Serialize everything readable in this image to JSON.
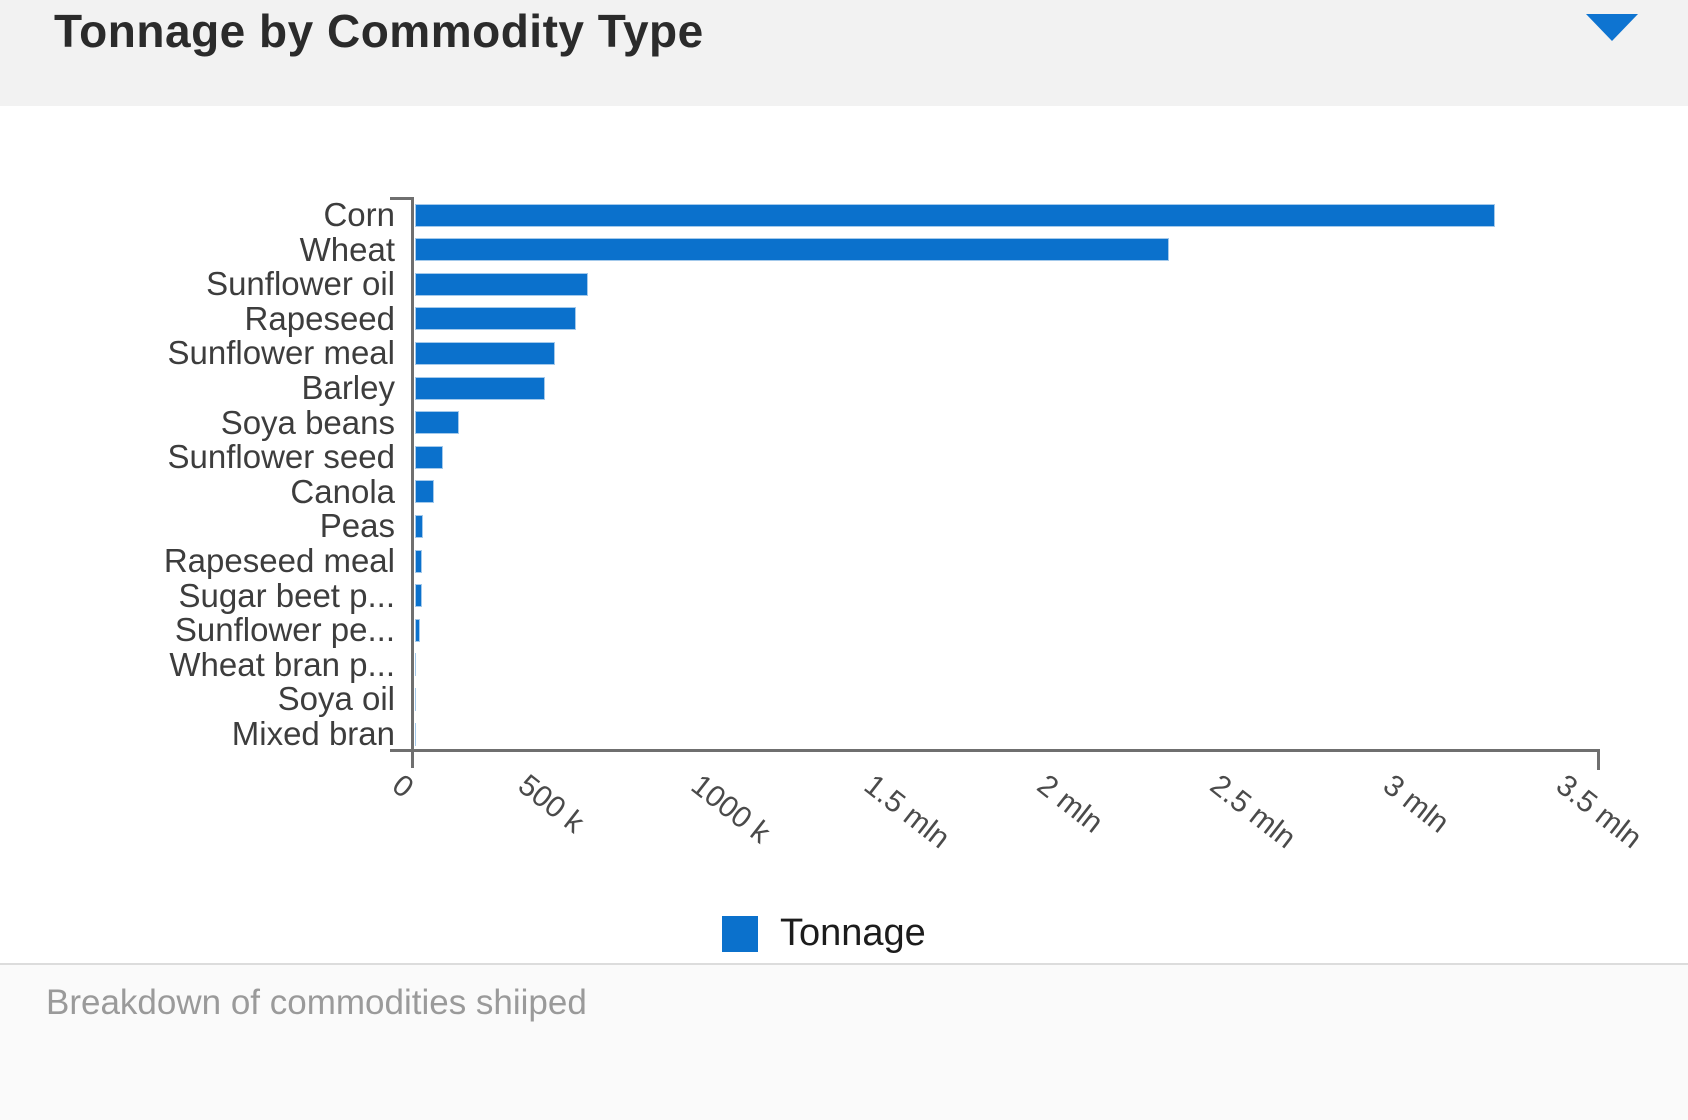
{
  "header": {
    "title": "Tonnage by Commodity Type"
  },
  "chart_data": {
    "type": "bar",
    "orientation": "horizontal",
    "title": "Tonnage by Commodity Type",
    "categories": [
      "Corn",
      "Wheat",
      "Sunflower oil",
      "Rapeseed",
      "Sunflower meal",
      "Barley",
      "Soya beans",
      "Sunflower seed",
      "Canola",
      "Peas",
      "Rapeseed meal",
      "Sugar beet p...",
      "Sunflower pe...",
      "Wheat bran p...",
      "Soya oil",
      "Mixed bran"
    ],
    "series": [
      {
        "name": "Tonnage",
        "color": "#0b71cc",
        "values": [
          3120000,
          2180000,
          500000,
          465000,
          405000,
          375000,
          127000,
          80000,
          55000,
          22000,
          20000,
          19000,
          15000,
          4000,
          2000,
          1000
        ]
      }
    ],
    "x_axis": {
      "min": 0,
      "max": 3500000,
      "tick_values": [
        0,
        500000,
        1000000,
        1500000,
        2000000,
        2500000,
        3000000,
        3500000
      ],
      "tick_labels": [
        "0",
        "500 k",
        "1000 k",
        "1.5 mln",
        "2 mln",
        "2.5 mln",
        "3 mln",
        "3.5 mln"
      ],
      "label_rotation_deg": 38
    },
    "y_axis": {
      "label": ""
    },
    "grid": false,
    "legend": {
      "position": "bottom",
      "items": [
        {
          "label": "Tonnage",
          "color": "#0b71cc"
        }
      ]
    }
  },
  "footer": {
    "caption": "Breakdown of commodities shiiped"
  },
  "colors": {
    "bar": "#0b71cc",
    "accent_triangle": "#0e74d1",
    "header_bg": "#f2f2f2",
    "axis_line": "#6f6f6f",
    "title_text": "#2b2b2b",
    "caption_text": "#9a9a9a"
  }
}
